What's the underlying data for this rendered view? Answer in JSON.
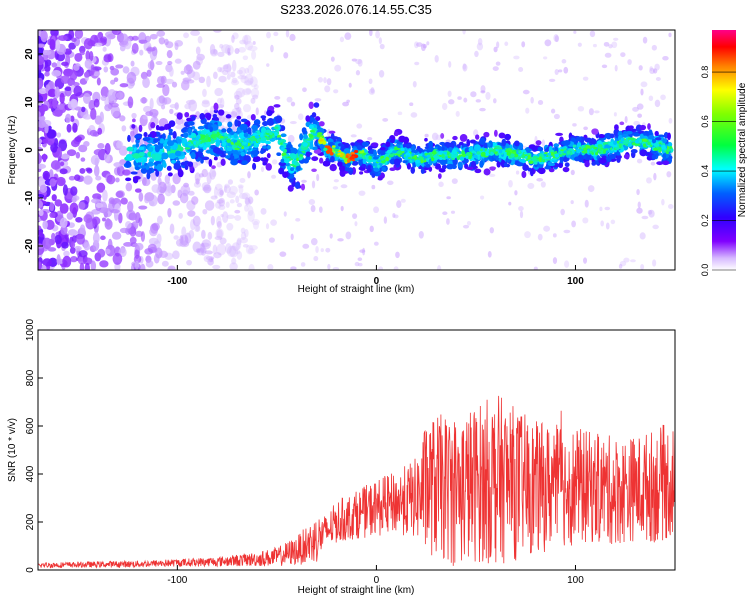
{
  "chart_data": [
    {
      "type": "heatmap",
      "title": "S233.2026.076.14.55.C35",
      "xlabel": "Height of straight line (km)",
      "ylabel": "Frequency (Hz)",
      "xlim": [
        -170,
        150
      ],
      "ylim": [
        -25,
        25
      ],
      "xticks": [
        -100,
        0,
        100
      ],
      "yticks": [
        -20,
        -10,
        0,
        10,
        20
      ],
      "colorbar": {
        "label": "Normalized spectral amplitude",
        "range": [
          0.0,
          0.97
        ],
        "ticks": [
          "0.0",
          "0.2",
          "0.4",
          "0.6",
          "0.8"
        ],
        "tick_values": [
          0.0,
          0.2,
          0.4,
          0.6,
          0.8
        ]
      },
      "ridge": {
        "description_values_x": [
          -110,
          -100,
          -90,
          -80,
          -70,
          -60,
          -50,
          -45,
          -40,
          -35,
          -30,
          -25,
          -20,
          -15,
          -10,
          -5,
          0,
          10,
          20,
          30,
          40,
          50,
          60,
          70,
          80,
          90,
          100,
          110,
          120,
          130,
          140,
          148
        ],
        "description_values_y": [
          -1,
          0,
          2,
          3,
          1,
          2,
          4,
          -2,
          -3,
          2,
          4,
          0,
          0,
          -2,
          -1,
          -1,
          -3,
          0,
          -2,
          -1,
          -1,
          -1,
          0,
          -1,
          -2,
          -1,
          0,
          0,
          1,
          2,
          1,
          0
        ]
      }
    },
    {
      "type": "line",
      "xlabel": "Height of straight line (km)",
      "ylabel": "SNR (10 * v/v)",
      "xlim": [
        -170,
        150
      ],
      "ylim": [
        0,
        1000
      ],
      "xticks": [
        -100,
        0,
        100
      ],
      "yticks": [
        0,
        200,
        400,
        600,
        800,
        1000
      ],
      "color": "#ee3333",
      "envelope_x": [
        -170,
        -150,
        -120,
        -100,
        -80,
        -60,
        -50,
        -40,
        -30,
        -25,
        -20,
        -10,
        0,
        10,
        20,
        25,
        30,
        40,
        50,
        60,
        70,
        80,
        90,
        100,
        110,
        120,
        130,
        140,
        150
      ],
      "envelope_mid": [
        20,
        22,
        25,
        30,
        35,
        45,
        55,
        80,
        130,
        160,
        200,
        230,
        260,
        280,
        300,
        340,
        350,
        330,
        360,
        380,
        360,
        340,
        350,
        350,
        340,
        330,
        340,
        350,
        380
      ],
      "envelope_amp": [
        12,
        12,
        14,
        16,
        20,
        30,
        40,
        60,
        100,
        70,
        90,
        100,
        120,
        130,
        170,
        280,
        300,
        320,
        330,
        360,
        320,
        280,
        260,
        250,
        230,
        230,
        220,
        240,
        250
      ]
    }
  ]
}
